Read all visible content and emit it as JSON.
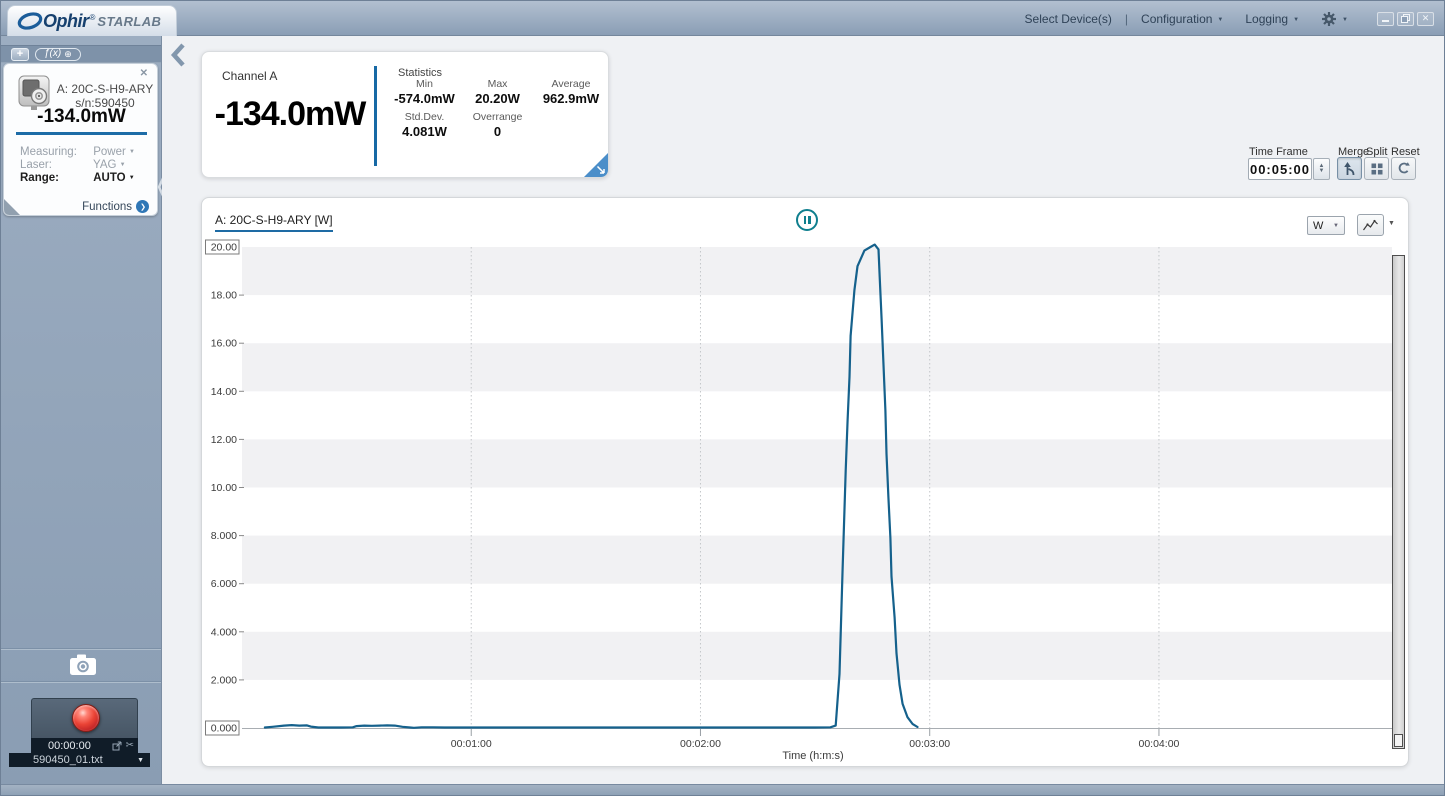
{
  "brand": {
    "name": "Ophir",
    "reg": "®",
    "product": "STARLAB"
  },
  "topbar": {
    "select_devices": "Select Device(s)",
    "separator": "|",
    "configuration": "Configuration",
    "logging": "Logging"
  },
  "sidebar": {
    "toolbar": {
      "add": "+",
      "fx": "ƒ(x)",
      "fx_badge": "⊕"
    },
    "device": {
      "close": "✕",
      "name": "A: 20C-S-H9-ARY",
      "serial": "s/n:590450",
      "reading": "-134.0mW",
      "measuring_label": "Measuring:",
      "measuring_value": "Power",
      "laser_label": "Laser:",
      "laser_value": "YAG",
      "range_label": "Range:",
      "range_value": "AUTO",
      "functions_label": "Functions"
    },
    "recorder": {
      "elapsed": "00:00:00",
      "filename": "590450_01.txt"
    }
  },
  "stats": {
    "channel_label": "Channel A",
    "reading": "-134.0mW",
    "title": "Statistics",
    "min_label": "Min",
    "min_value": "-574.0mW",
    "max_label": "Max",
    "max_value": "20.20W",
    "avg_label": "Average",
    "avg_value": "962.9mW",
    "std_label": "Std.Dev.",
    "std_value": "4.081W",
    "over_label": "Overrange",
    "over_value": "0"
  },
  "timeframe": {
    "label": "Time Frame",
    "value": "00:05:00",
    "merge": "Merge",
    "split": "Split",
    "reset": "Reset"
  },
  "chart_header": {
    "title": "A: 20C-S-H9-ARY [W]",
    "units": "W"
  },
  "chart_data": {
    "type": "line",
    "title": "A: 20C-S-H9-ARY [W]",
    "unit": "W",
    "xlabel": "Time (h:m:s)",
    "ylim": [
      0,
      20
    ],
    "x_domain_seconds": [
      0,
      301
    ],
    "x_ticks": [
      {
        "t": 60,
        "label": "00:01:00"
      },
      {
        "t": 120,
        "label": "00:02:00"
      },
      {
        "t": 180,
        "label": "00:03:00"
      },
      {
        "t": 240,
        "label": "00:04:00"
      }
    ],
    "y_ticks": [
      {
        "v": 20,
        "label": "20.00",
        "boxed": true
      },
      {
        "v": 18,
        "label": "18.00"
      },
      {
        "v": 16,
        "label": "16.00"
      },
      {
        "v": 14,
        "label": "14.00"
      },
      {
        "v": 12,
        "label": "12.00"
      },
      {
        "v": 10,
        "label": "10.00"
      },
      {
        "v": 8,
        "label": "8.000"
      },
      {
        "v": 6,
        "label": "6.000"
      },
      {
        "v": 4,
        "label": "4.000"
      },
      {
        "v": 2,
        "label": "2.000"
      },
      {
        "v": 0,
        "label": "0.000",
        "boxed": true
      }
    ],
    "gray_bands": [
      [
        18,
        20
      ],
      [
        14,
        16
      ],
      [
        10,
        12
      ],
      [
        6,
        8
      ],
      [
        2,
        4
      ]
    ],
    "grid": "vertical-dotted",
    "legend": "none",
    "line_color": "#15618c",
    "series": [
      {
        "name": "A: 20C-S-H9-ARY [W]",
        "points": [
          [
            6,
            0.02
          ],
          [
            8,
            0.05
          ],
          [
            11,
            0.1
          ],
          [
            13,
            0.12
          ],
          [
            15,
            0.1
          ],
          [
            17,
            0.11
          ],
          [
            18,
            0.06
          ],
          [
            20,
            0.02
          ],
          [
            23,
            0.02
          ],
          [
            26,
            0.02
          ],
          [
            29,
            0.03
          ],
          [
            30,
            0.08
          ],
          [
            32,
            0.1
          ],
          [
            34,
            0.09
          ],
          [
            36,
            0.1
          ],
          [
            38,
            0.11
          ],
          [
            40,
            0.1
          ],
          [
            42,
            0.05
          ],
          [
            44,
            0.02
          ],
          [
            45,
            0.01
          ],
          [
            47,
            0.03
          ],
          [
            50,
            0.03
          ],
          [
            53,
            0.02
          ],
          [
            56,
            0.02
          ],
          [
            60,
            0.02
          ],
          [
            70,
            0.02
          ],
          [
            80,
            0.02
          ],
          [
            90,
            0.02
          ],
          [
            100,
            0.02
          ],
          [
            110,
            0.02
          ],
          [
            120,
            0.02
          ],
          [
            130,
            0.02
          ],
          [
            140,
            0.02
          ],
          [
            150,
            0.02
          ],
          [
            154,
            0.03
          ],
          [
            155.4,
            0.1
          ],
          [
            156.4,
            2.25
          ],
          [
            157.2,
            6.6
          ],
          [
            158.0,
            10.7
          ],
          [
            158.5,
            12.8
          ],
          [
            159.0,
            14.6
          ],
          [
            159.3,
            16.3
          ],
          [
            160.3,
            18.2
          ],
          [
            161.1,
            19.2
          ],
          [
            162.9,
            19.85
          ],
          [
            164.5,
            20.0
          ],
          [
            165.6,
            20.1
          ],
          [
            166.6,
            19.9
          ],
          [
            166.9,
            18.75
          ],
          [
            167.4,
            17.0
          ],
          [
            167.9,
            15.1
          ],
          [
            168.4,
            13.2
          ],
          [
            168.7,
            11.4
          ],
          [
            169.2,
            9.6
          ],
          [
            169.7,
            7.9
          ],
          [
            170.0,
            6.3
          ],
          [
            170.8,
            4.6
          ],
          [
            171.3,
            3.1
          ],
          [
            172.1,
            1.8
          ],
          [
            172.9,
            1.0
          ],
          [
            174.2,
            0.45
          ],
          [
            175.5,
            0.17
          ],
          [
            176.8,
            0.04
          ]
        ]
      }
    ]
  }
}
